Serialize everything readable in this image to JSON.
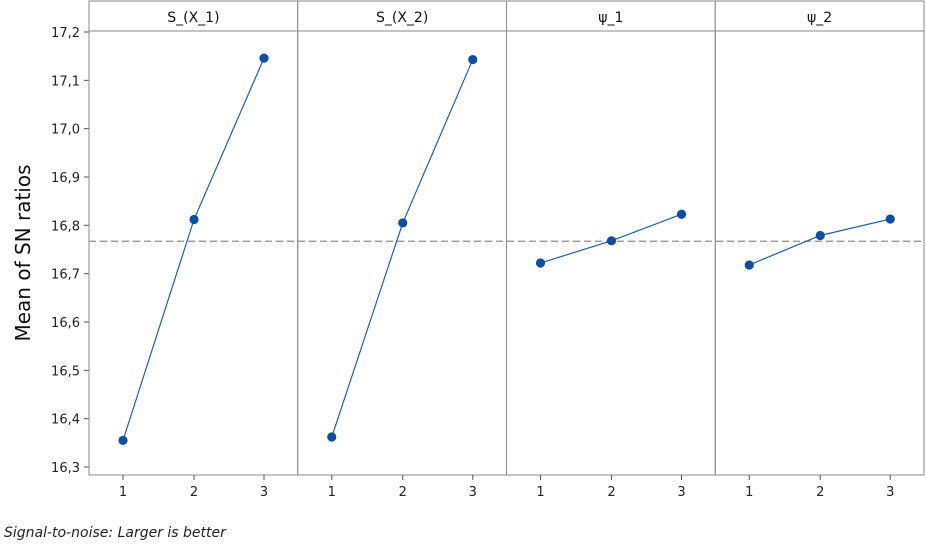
{
  "chart_data": {
    "type": "line",
    "ylabel": "Mean of SN ratios",
    "ylim": [
      16.3,
      17.2
    ],
    "yticks": [
      "16,3",
      "16,4",
      "16,5",
      "16,6",
      "16,7",
      "16,8",
      "16,9",
      "17,0",
      "17,1",
      "17,2"
    ],
    "ytick_values": [
      16.3,
      16.4,
      16.5,
      16.6,
      16.7,
      16.8,
      16.9,
      17.0,
      17.1,
      17.2
    ],
    "categories": [
      "1",
      "2",
      "3"
    ],
    "reference_line": 16.767,
    "grid": false,
    "line_color": "#1f5fa8",
    "marker_color": "#0b4ea2",
    "reference_color": "#8c8c8c",
    "panels": [
      {
        "title": "S_(X_1)",
        "values": [
          16.355,
          16.812,
          17.146
        ]
      },
      {
        "title": "S_(X_2)",
        "values": [
          16.362,
          16.805,
          17.143
        ]
      },
      {
        "title": "ψ_1",
        "values": [
          16.722,
          16.768,
          16.823
        ]
      },
      {
        "title": "ψ_2",
        "values": [
          16.718,
          16.779,
          16.813
        ]
      }
    ]
  },
  "footnote": "Signal-to-noise: Larger is better"
}
